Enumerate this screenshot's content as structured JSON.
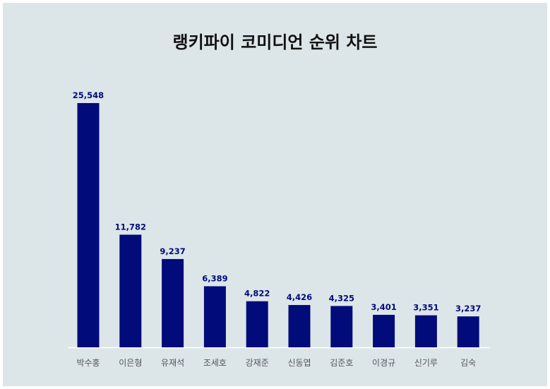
{
  "chart_data": {
    "type": "bar",
    "title": "랭키파이 코미디언 순위 차트",
    "categories": [
      "박수홍",
      "이은형",
      "유재석",
      "조세호",
      "강재준",
      "신동엽",
      "김준호",
      "이경규",
      "신기루",
      "김숙"
    ],
    "values": [
      25548,
      11782,
      9237,
      6389,
      4822,
      4426,
      4325,
      3401,
      3351,
      3237
    ],
    "value_labels": [
      "25,548",
      "11,782",
      "9,237",
      "6,389",
      "4,822",
      "4,426",
      "4,325",
      "3,401",
      "3,351",
      "3,237"
    ],
    "xlabel": "",
    "ylabel": "",
    "ylim": [
      0,
      25548
    ],
    "grid": false,
    "legend": "none",
    "colors": {
      "bar": "#020b7a",
      "value_label": "#020b7a",
      "category_label": "#555555",
      "axis": "#ffffff",
      "background": "#dce6e9"
    }
  }
}
